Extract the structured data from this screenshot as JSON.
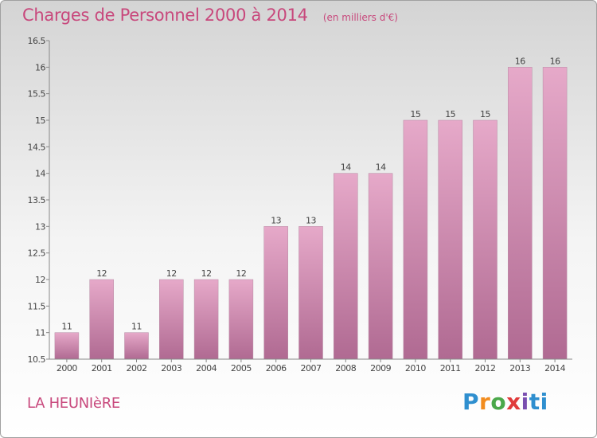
{
  "chart_data": {
    "type": "bar",
    "title": "Charges de Personnel 2000 à 2014",
    "subtitle": "(en milliers d'€)",
    "categories": [
      "2000",
      "2001",
      "2002",
      "2003",
      "2004",
      "2005",
      "2006",
      "2007",
      "2008",
      "2009",
      "2010",
      "2011",
      "2012",
      "2013",
      "2014"
    ],
    "values": [
      11,
      12,
      11,
      12,
      12,
      12,
      13,
      13,
      14,
      14,
      15,
      15,
      15,
      16,
      16
    ],
    "data_labels": [
      "11",
      "12",
      "11",
      "12",
      "12",
      "12",
      "13",
      "13",
      "14",
      "14",
      "15",
      "15",
      "15",
      "16",
      "16"
    ],
    "ylim": [
      10.5,
      16.5
    ],
    "yticks": [
      10.5,
      11,
      11.5,
      12,
      12.5,
      13,
      13.5,
      14,
      14.5,
      15,
      15.5,
      16,
      16.5
    ],
    "ytick_labels": [
      "10.5",
      "11",
      "11.5",
      "12",
      "12.5",
      "13",
      "13.5",
      "14",
      "14.5",
      "15",
      "15.5",
      "16",
      "16.5"
    ],
    "grid": false,
    "bar_color": "#d58fb4"
  },
  "footer": {
    "commune": "LA HEUNIèRE",
    "brand": [
      "P",
      "r",
      "o",
      "x",
      "i",
      "ti"
    ]
  },
  "colors": {
    "accent": "#c8487c"
  }
}
